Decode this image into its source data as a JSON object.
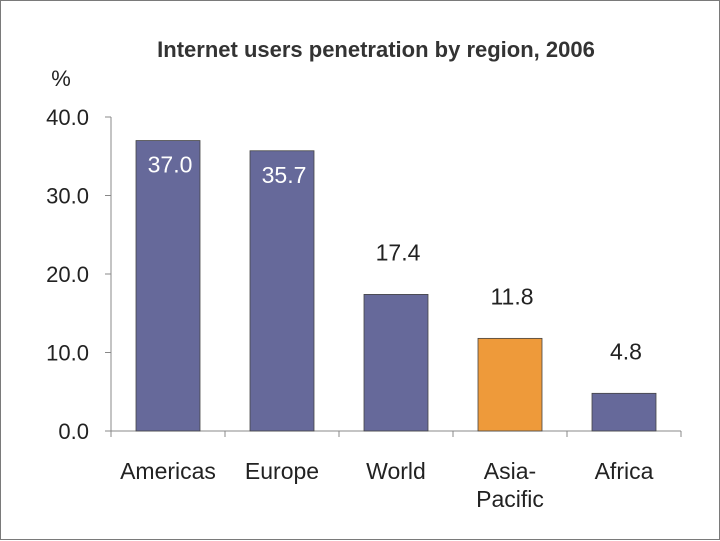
{
  "chart_data": {
    "type": "bar",
    "title": "Internet users penetration by region, 2006",
    "xlabel": "",
    "ylabel": "%",
    "ylim": [
      0,
      40
    ],
    "y_ticks": [
      "0.0",
      "10.0",
      "20.0",
      "30.0",
      "40.0"
    ],
    "categories": [
      "Americas",
      "Europe",
      "World",
      "Asia-Pacific",
      "Africa"
    ],
    "category_lines": [
      [
        "Americas"
      ],
      [
        "Europe"
      ],
      [
        "World"
      ],
      [
        "Asia-",
        "Pacific"
      ],
      [
        "Africa"
      ]
    ],
    "values": [
      37.0,
      35.7,
      17.4,
      11.8,
      4.8
    ],
    "value_labels": [
      "37.0",
      "35.7",
      "17.4",
      "11.8",
      "4.8"
    ],
    "label_positions": [
      "inside",
      "inside",
      "above",
      "above",
      "above"
    ],
    "bar_colors": [
      "#66699a",
      "#66699a",
      "#66699a",
      "#ee9a3a",
      "#66699a"
    ],
    "label_colors": [
      "#ffffff",
      "#ffffff",
      "#222222",
      "#222222",
      "#222222"
    ],
    "grid": false,
    "legend": "none"
  }
}
